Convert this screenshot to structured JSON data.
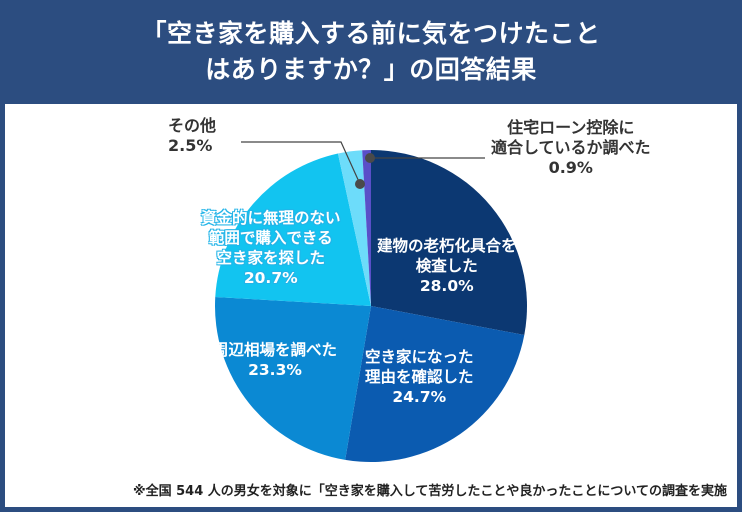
{
  "header": {
    "title_line1": "「空き家を購入する前に気をつけたこと",
    "title_line2": "はありますか？」の回答結果"
  },
  "labels": {
    "inspect": {
      "l1": "建物の老朽化具合を",
      "l2": "検査した",
      "pct": "28.0%"
    },
    "reason": {
      "l1": "空き家になった",
      "l2": "理由を確認した",
      "pct": "24.7%"
    },
    "market": {
      "l1": "周辺相場を調べた",
      "pct": "23.3%"
    },
    "budget": {
      "l1": "資金的に無理のない",
      "l2": "範囲で購入できる",
      "l3": "空き家を探した",
      "pct": "20.7%"
    },
    "other": {
      "l1": "その他",
      "pct": "2.5%"
    },
    "loan": {
      "l1": "住宅ローン控除に",
      "l2": "適合しているか調べた",
      "pct": "0.9%"
    }
  },
  "footnote": "※全国 544 人の男女を対象に「空き家を購入して苦労したことや良かったことについての調査を実施",
  "colors": {
    "header_bg": "#2c4d80",
    "inspect": "#0c3872",
    "reason": "#0b5bb0",
    "market": "#0b89d3",
    "budget": "#12c4f0",
    "other": "#6ddcfa",
    "loan": "#5a4fc8"
  },
  "chart_data": {
    "type": "pie",
    "title": "「空き家を購入する前に気をつけたことはありますか？」の回答結果",
    "categories": [
      "建物の老朽化具合を検査した",
      "空き家になった理由を確認した",
      "周辺相場を調べた",
      "資金的に無理のない範囲で購入できる空き家を探した",
      "その他",
      "住宅ローン控除に適合しているか調べた"
    ],
    "values": [
      28.0,
      24.7,
      23.3,
      20.7,
      2.5,
      0.9
    ],
    "unit": "%",
    "start_angle": "12 o'clock",
    "direction": "clockwise",
    "note": "※全国 544 人の男女を対象に「空き家を購入して苦労したことや良かったことについての調査を実施"
  }
}
